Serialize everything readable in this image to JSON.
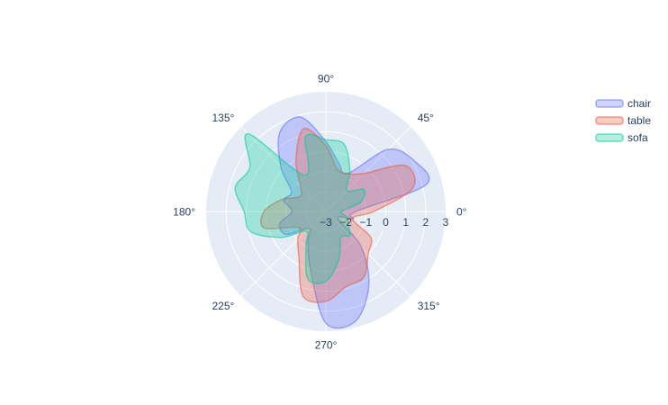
{
  "chart_data": {
    "type": "polar-area",
    "radial_axis": {
      "range": [
        -3,
        3
      ],
      "tick_labels": [
        "−3",
        "−2",
        "−1",
        "0",
        "1",
        "2",
        "3"
      ],
      "tick_values": [
        -3,
        -2,
        -1,
        0,
        1,
        2,
        3
      ]
    },
    "angular_axis": {
      "tick_labels": [
        "0°",
        "45°",
        "90°",
        "135°",
        "180°",
        "225°",
        "270°",
        "315°"
      ],
      "tick_values": [
        0,
        45,
        90,
        135,
        180,
        225,
        270,
        315
      ]
    },
    "grid": true,
    "legend_position": "top-right",
    "theta": [
      0,
      15,
      30,
      45,
      60,
      75,
      90,
      105,
      120,
      135,
      150,
      165,
      180,
      195,
      210,
      225,
      240,
      255,
      270,
      285,
      300,
      315,
      330,
      345
    ],
    "series": [
      {
        "name": "chair",
        "color": "#636efa",
        "r": [
          -1.5,
          2.2,
          2.1,
          1.4,
          -0.8,
          -0.5,
          0.5,
          1.9,
          1.6,
          0.2,
          -1.0,
          -0.8,
          -1.3,
          -0.6,
          -0.7,
          -1.8,
          -1.2,
          0.0,
          2.6,
          2.7,
          1.3,
          -0.5,
          -2.3,
          -1.6
        ]
      },
      {
        "name": "table",
        "color": "#ef553b",
        "r": [
          -0.6,
          1.5,
          1.6,
          -0.3,
          -0.8,
          -0.8,
          0.3,
          1.3,
          0.0,
          -1.2,
          -1.5,
          -0.7,
          0.1,
          0.2,
          -1.4,
          -1.0,
          -0.3,
          1.4,
          1.5,
          0.9,
          0.8,
          0.0,
          -0.4,
          -1.6
        ]
      },
      {
        "name": "sofa",
        "color": "#00cc96",
        "r": [
          -2.2,
          -1.2,
          -0.8,
          -1.5,
          -0.6,
          0.5,
          0.6,
          0.9,
          -0.9,
          2.5,
          1.4,
          1.7,
          1.1,
          0.9,
          -0.4,
          -1.6,
          -1.0,
          0.5,
          0.5,
          -0.5,
          -1.5,
          -1.3,
          -1.7,
          -1.9
        ]
      }
    ]
  }
}
